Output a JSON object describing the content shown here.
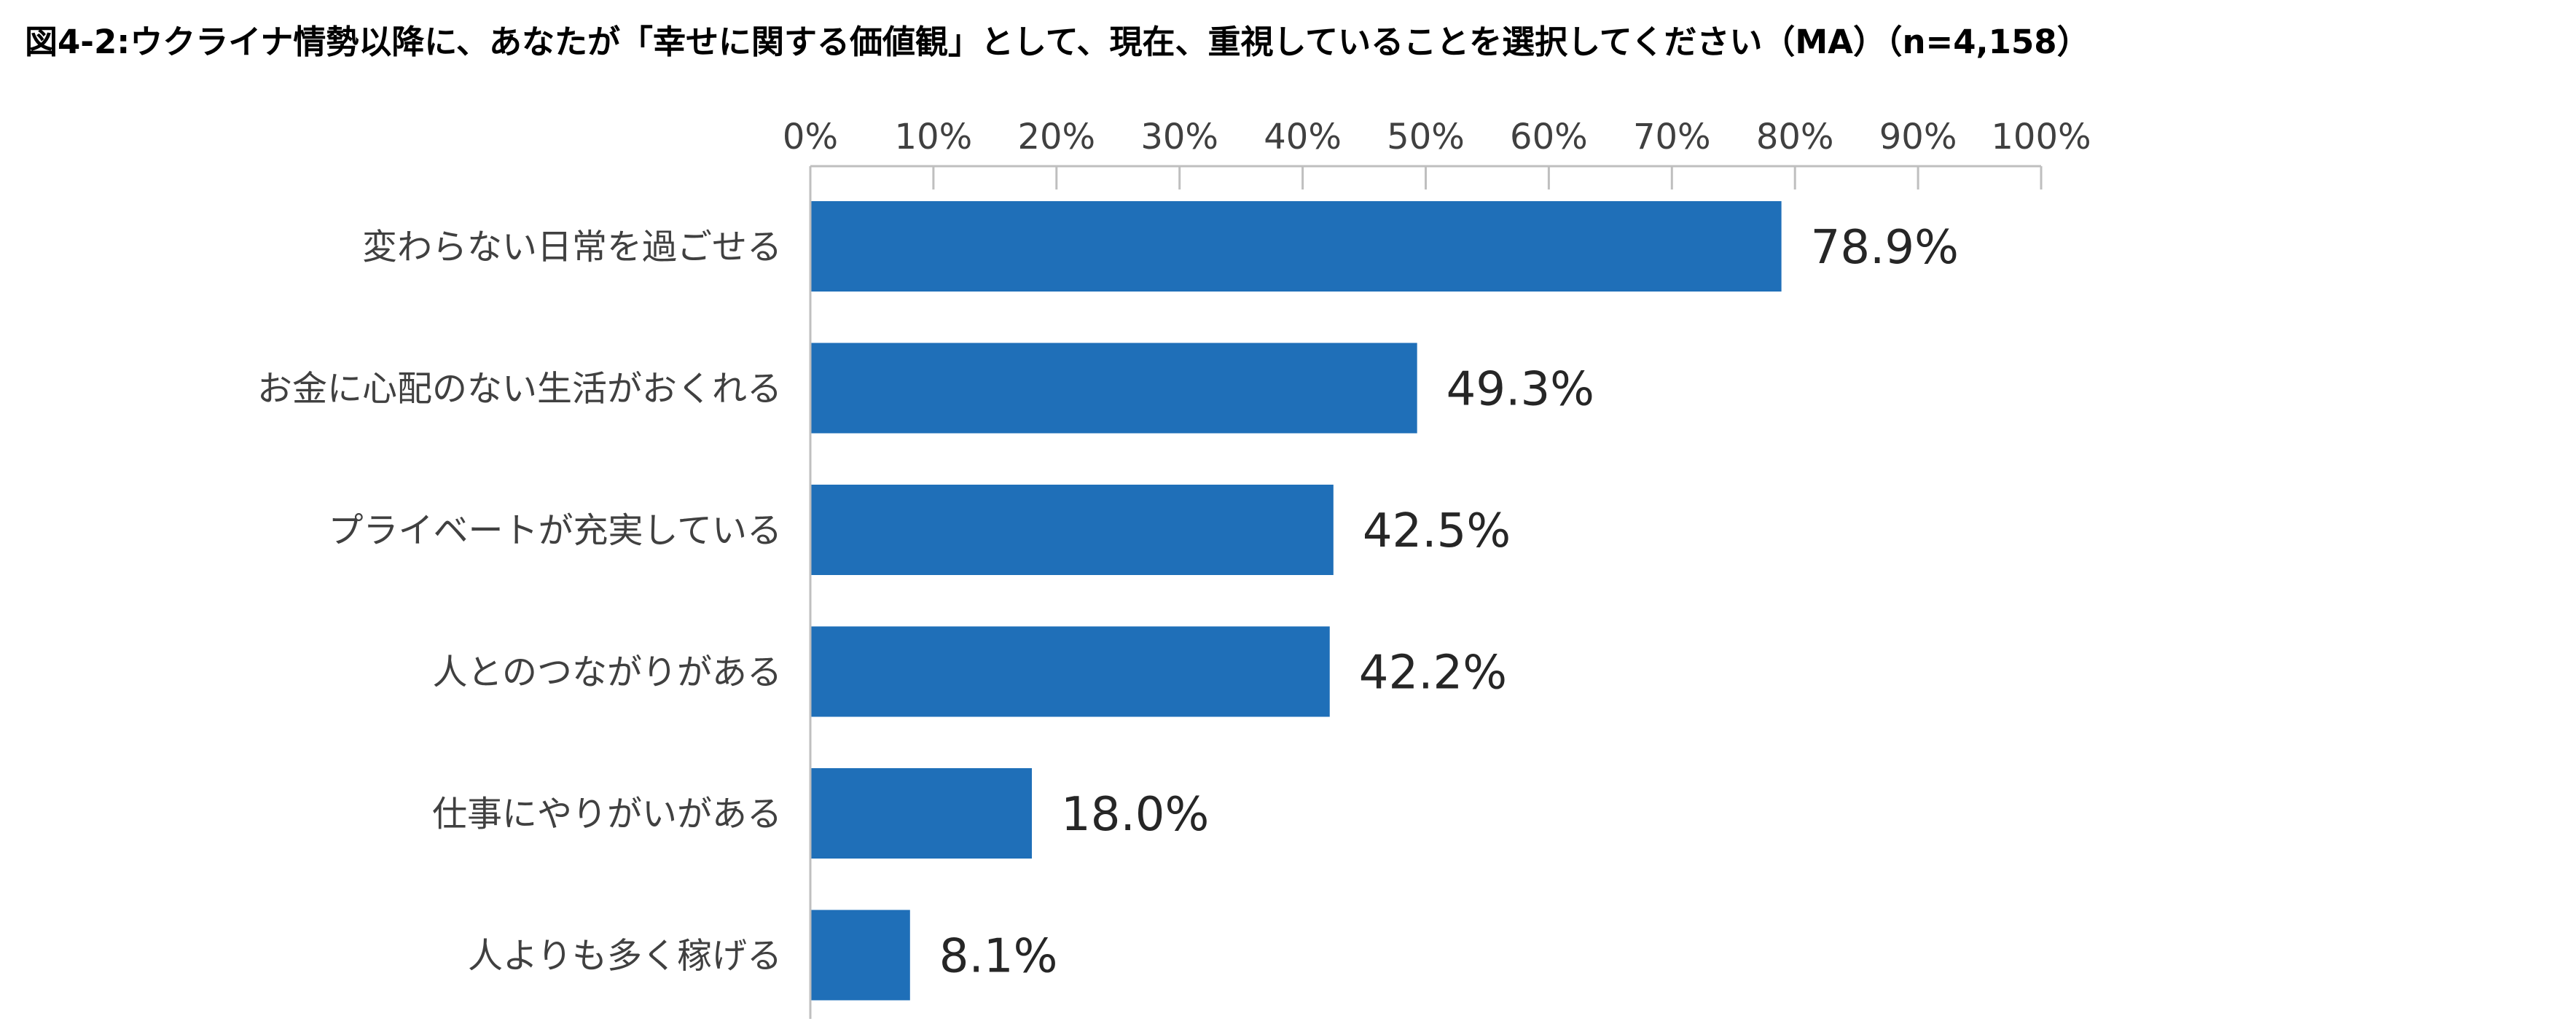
{
  "chart_data": {
    "type": "bar",
    "orientation": "horizontal",
    "title": "図4-2:ウクライナ情勢以降に、あなたが「幸せに関する価値観」として、現在、重視していることを選択してください（MA）（n=4,158）",
    "categories": [
      "変わらない日常を過ごせる",
      "お金に心配のない生活がおくれる",
      "プライベートが充実している",
      "人とのつながりがある",
      "仕事にやりがいがある",
      "人よりも多く稼げる"
    ],
    "values": [
      78.9,
      49.3,
      42.5,
      42.2,
      18.0,
      8.1
    ],
    "data_labels": [
      "78.9%",
      "49.3%",
      "42.5%",
      "42.2%",
      "18.0%",
      "8.1%"
    ],
    "xlim": [
      0,
      100
    ],
    "x_ticks": [
      0,
      10,
      20,
      30,
      40,
      50,
      60,
      70,
      80,
      90,
      100
    ],
    "x_tick_labels": [
      "0%",
      "10%",
      "20%",
      "30%",
      "40%",
      "50%",
      "60%",
      "70%",
      "80%",
      "90%",
      "100%"
    ],
    "xaxis_position": "top",
    "xlabel": "",
    "ylabel": "",
    "grid": false,
    "legend": "none",
    "colors": {
      "bar": "#1F6FB8",
      "axis": "#BFBFBF",
      "tick_text": "#404040",
      "category_text": "#404040",
      "data_label_text": "#262626",
      "title_text": "#000000"
    }
  }
}
